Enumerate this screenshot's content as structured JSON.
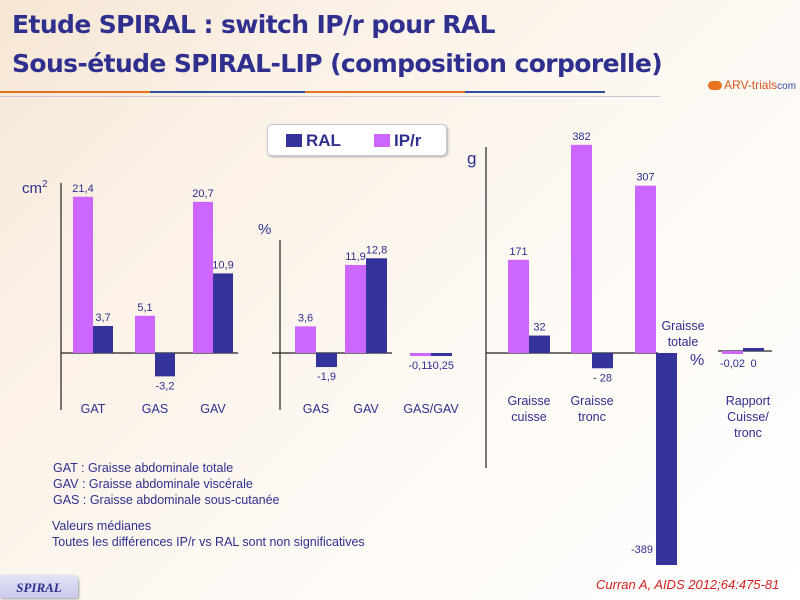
{
  "header": {
    "title_line1": "Etude SPIRAL : switch IP/r pour RAL",
    "title_line2": "Sous-étude SPIRAL-LIP (composition corporelle)",
    "logo_text": "ARV-trials",
    "logo_suffix": "com"
  },
  "colors": {
    "RAL": "#343399",
    "IP/r": "#cc66ff",
    "title": "#2e2f8f",
    "citation": "#d22020"
  },
  "legend": [
    {
      "label": "RAL",
      "color": "#343399"
    },
    {
      "label": "IP/r",
      "color": "#cc66ff"
    }
  ],
  "chart_data": [
    {
      "type": "bar",
      "ylabel": "cm²",
      "ylabel_base": "cm",
      "ylabel_sup": "2",
      "categories": [
        "GAT",
        "GAS",
        "GAV"
      ],
      "series": [
        {
          "name": "IP/r",
          "values": [
            21.4,
            5.1,
            20.7
          ],
          "labels": [
            "21,4",
            "5,1",
            "20,7"
          ]
        },
        {
          "name": "RAL",
          "values": [
            3.7,
            -3.2,
            10.9
          ],
          "labels": [
            "3,7",
            "-3,2",
            "10,9"
          ]
        }
      ]
    },
    {
      "type": "bar",
      "ylabel": "%",
      "categories": [
        "GAS",
        "GAV",
        "GAS/GAV"
      ],
      "series": [
        {
          "name": "IP/r",
          "values": [
            3.6,
            11.9,
            -0.11
          ],
          "labels": [
            "3,6",
            "11,9",
            "-0,11"
          ]
        },
        {
          "name": "RAL",
          "values": [
            -1.9,
            12.8,
            -0.25
          ],
          "labels": [
            "-1,9",
            "12,8",
            "-0,25"
          ]
        }
      ]
    },
    {
      "type": "bar",
      "ylabel": "g",
      "categories": [
        "Graisse cuisse",
        "Graisse tronc",
        "Graisse totale"
      ],
      "category_lines": [
        [
          "Graisse",
          "cuisse"
        ],
        [
          "Graisse",
          "tronc"
        ],
        [
          "Graisse",
          "totale"
        ]
      ],
      "series": [
        {
          "name": "IP/r",
          "values": [
            171,
            382,
            307
          ],
          "labels": [
            "171",
            "382",
            "307"
          ]
        },
        {
          "name": "RAL",
          "values": [
            32,
            -28,
            -389
          ],
          "labels": [
            "32",
            "- 28",
            "-389"
          ]
        }
      ]
    },
    {
      "type": "bar",
      "ylabel": "%",
      "categories": [
        "Rapport Cuisse/tronc"
      ],
      "category_lines": [
        [
          "Rapport",
          "Cuisse/",
          "tronc"
        ]
      ],
      "series": [
        {
          "name": "IP/r",
          "values": [
            -0.02
          ],
          "labels": [
            "-0,02"
          ]
        },
        {
          "name": "RAL",
          "values": [
            0
          ],
          "labels": [
            "0"
          ]
        }
      ]
    }
  ],
  "notes": {
    "abbreviations": [
      "GAT : Graisse abdominale totale",
      "GAV : Graisse abdominale viscérale",
      "GAS : Graisse abdominale sous-cutanée"
    ],
    "footnotes": [
      "Valeurs médianes",
      "Toutes les différences IP/r vs RAL sont non significatives"
    ]
  },
  "footer": {
    "badge": "SPIRAL",
    "citation": "Curran A, AIDS 2012;64:475-81"
  }
}
